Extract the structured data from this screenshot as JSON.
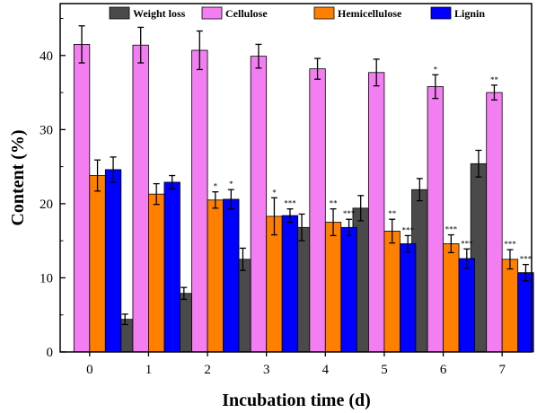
{
  "chart_data": {
    "type": "bar",
    "xlabel": "Incubation time (d)",
    "ylabel": "Content (%)",
    "categories": [
      "0",
      "1",
      "2",
      "3",
      "4",
      "5",
      "6",
      "7"
    ],
    "ylim": [
      0,
      47
    ],
    "yticks": [
      0,
      10,
      20,
      30,
      40
    ],
    "grid": false,
    "legend_position": "top",
    "series": [
      {
        "name": "Weight loss",
        "color": "#4a4a4a",
        "values": [
          null,
          4.4,
          7.9,
          12.5,
          16.8,
          19.4,
          21.9,
          25.4
        ],
        "errors": [
          null,
          0.7,
          0.8,
          1.5,
          1.8,
          1.7,
          1.5,
          1.8
        ],
        "significance": [
          "",
          "",
          "",
          "",
          "",
          "",
          "",
          ""
        ]
      },
      {
        "name": "Cellulose",
        "color": "#f27ef2",
        "values": [
          41.5,
          41.4,
          40.7,
          39.9,
          38.2,
          37.7,
          35.8,
          35.0
        ],
        "errors": [
          2.5,
          2.4,
          2.6,
          1.6,
          1.4,
          1.8,
          1.6,
          1.0
        ],
        "significance": [
          "",
          "",
          "",
          "",
          "",
          "",
          "*",
          "**"
        ]
      },
      {
        "name": "Hemicellulose",
        "color": "#ff8000",
        "values": [
          23.8,
          21.3,
          20.5,
          18.3,
          17.5,
          16.3,
          14.6,
          12.5
        ],
        "errors": [
          2.1,
          1.4,
          1.1,
          2.5,
          1.8,
          1.6,
          1.2,
          1.3
        ],
        "significance": [
          "",
          "",
          "*",
          "*",
          "**",
          "**",
          "***",
          "***"
        ]
      },
      {
        "name": "Lignin",
        "color": "#0000ff",
        "values": [
          24.6,
          22.9,
          20.6,
          18.4,
          16.8,
          14.6,
          12.6,
          10.7
        ],
        "errors": [
          1.7,
          0.9,
          1.3,
          0.9,
          1.1,
          1.1,
          1.3,
          1.1
        ],
        "significance": [
          "",
          "",
          "*",
          "***",
          "***",
          "***",
          "***",
          "***"
        ]
      }
    ]
  }
}
